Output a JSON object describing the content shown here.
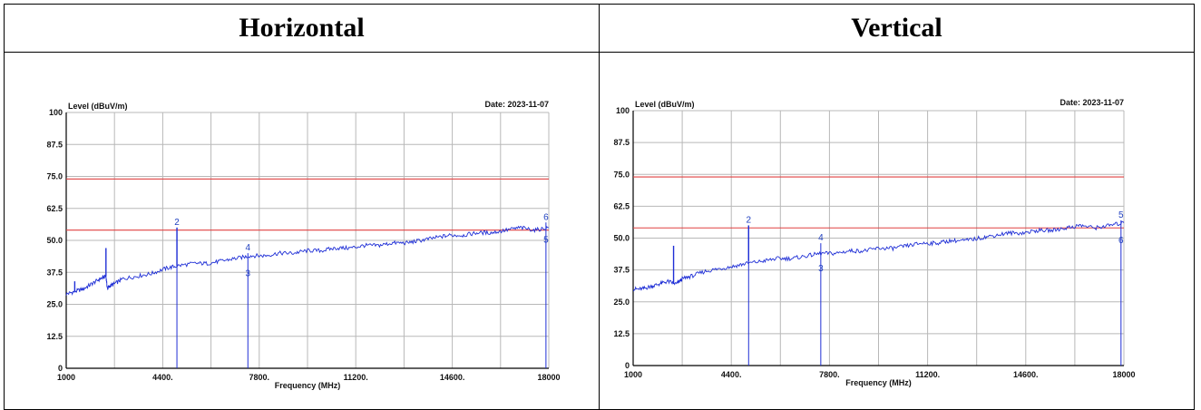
{
  "panels": [
    {
      "title": "Horizontal",
      "date": "Date: 2023-11-07",
      "ylabel": "Level (dBuV/m)",
      "xlabel": "Frequency (MHz)"
    },
    {
      "title": "Vertical",
      "date": "Date: 2023-11-07",
      "ylabel": "Level (dBuV/m)",
      "xlabel": "Frequency (MHz)"
    }
  ],
  "colors": {
    "trace": "#1f2fd6",
    "limit": "#e04040",
    "grid": "#b8b8b8",
    "axis": "#000000"
  },
  "chart_data": [
    {
      "type": "line",
      "xlim": [
        1000,
        18000
      ],
      "ylim": [
        0,
        100
      ],
      "x_ticks": [
        "1000",
        "4400.",
        "7800.",
        "11200.",
        "14600.",
        "18000"
      ],
      "y_ticks": [
        "0",
        "12.5",
        "25.0",
        "37.5",
        "50.0",
        "62.5",
        "75.0",
        "87.5",
        "100"
      ],
      "limit_lines": [
        74,
        54
      ],
      "trace": {
        "x": [
          1000,
          1300,
          1600,
          1900,
          2200,
          2400,
          2450,
          2500,
          2700,
          3000,
          3500,
          4000,
          4500,
          4900,
          5500,
          6000,
          6500,
          7000,
          7500,
          8000,
          8500,
          9000,
          9500,
          10000,
          10500,
          11000,
          11500,
          12000,
          12500,
          13000,
          13500,
          14000,
          14500,
          15000,
          15500,
          16000,
          16500,
          17000,
          17500,
          18000
        ],
        "y": [
          29,
          30,
          31,
          33,
          35,
          36,
          31,
          32,
          33,
          35,
          36,
          37,
          39,
          40,
          41,
          41,
          42,
          43,
          44,
          44,
          45,
          45,
          46,
          46,
          47,
          47,
          48,
          48,
          49,
          49,
          50,
          51,
          52,
          52,
          53,
          53,
          54,
          55,
          54,
          55
        ]
      },
      "spikes": [
        {
          "x": 1300,
          "y": 34
        },
        {
          "x": 2400,
          "y": 47
        },
        {
          "x": 4900,
          "y": 55
        }
      ],
      "markers": [
        {
          "label": "2",
          "x": 4900,
          "y": 55,
          "stem_to_axis": true
        },
        {
          "label": "4",
          "x": 7400,
          "y": 45,
          "stem_to_axis": true
        },
        {
          "label": "3",
          "x": 7400,
          "y": 35,
          "stem_to_axis": false
        },
        {
          "label": "6",
          "x": 17900,
          "y": 57,
          "stem_to_axis": true
        },
        {
          "label": "5",
          "x": 17900,
          "y": 48,
          "stem_to_axis": false
        }
      ]
    },
    {
      "type": "line",
      "xlim": [
        1000,
        18000
      ],
      "ylim": [
        0,
        100
      ],
      "x_ticks": [
        "1000",
        "4400.",
        "7800.",
        "11200.",
        "14600.",
        "18000"
      ],
      "y_ticks": [
        "0",
        "12.5",
        "25.0",
        "37.5",
        "50.0",
        "62.5",
        "75.0",
        "87.5",
        "100"
      ],
      "limit_lines": [
        74,
        54
      ],
      "trace": {
        "x": [
          1000,
          1300,
          1600,
          1900,
          2200,
          2500,
          2700,
          3000,
          3500,
          4000,
          4500,
          4900,
          5500,
          6000,
          6500,
          7000,
          7500,
          8000,
          8500,
          9000,
          9500,
          10000,
          10500,
          11000,
          11500,
          12000,
          12500,
          13000,
          13500,
          14000,
          14500,
          15000,
          15500,
          16000,
          16500,
          17000,
          17500,
          18000
        ],
        "y": [
          30,
          30,
          31,
          32,
          33,
          32,
          34,
          35,
          37,
          38,
          39,
          40,
          41,
          42,
          42,
          43,
          44,
          44,
          45,
          45,
          46,
          46,
          47,
          48,
          48,
          49,
          49,
          50,
          51,
          52,
          52,
          53,
          53,
          54,
          55,
          54,
          55,
          56
        ]
      },
      "spikes": [
        {
          "x": 2400,
          "y": 47
        },
        {
          "x": 5000,
          "y": 55
        }
      ],
      "markers": [
        {
          "label": "2",
          "x": 5000,
          "y": 55,
          "stem_to_axis": true
        },
        {
          "label": "4",
          "x": 7500,
          "y": 48,
          "stem_to_axis": true
        },
        {
          "label": "3",
          "x": 7500,
          "y": 36,
          "stem_to_axis": false
        },
        {
          "label": "5",
          "x": 17900,
          "y": 57,
          "stem_to_axis": true
        },
        {
          "label": "6",
          "x": 17900,
          "y": 47,
          "stem_to_axis": false
        }
      ]
    }
  ]
}
